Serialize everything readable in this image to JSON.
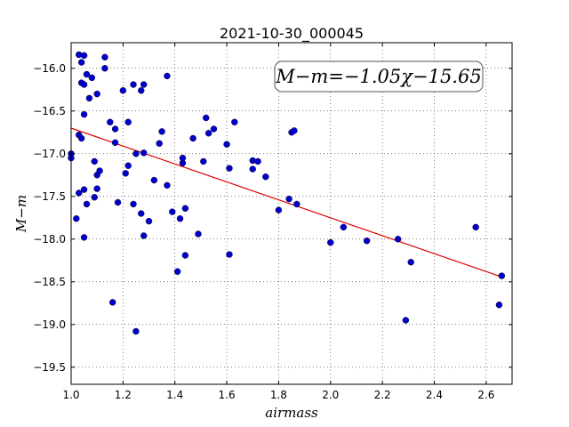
{
  "chart_data": {
    "type": "scatter",
    "title": "2021-10-30_000045",
    "xlabel": "airmass",
    "ylabel": "M−m",
    "xlim": [
      1.0,
      2.7
    ],
    "ylim": [
      -15.7,
      -19.7
    ],
    "x_ticks": [
      1.0,
      1.2,
      1.4,
      1.6,
      1.8,
      2.0,
      2.2,
      2.4,
      2.6
    ],
    "x_tick_labels": [
      "1.0",
      "1.2",
      "1.4",
      "1.6",
      "1.8",
      "2.0",
      "2.2",
      "2.4",
      "2.6"
    ],
    "y_ticks": [
      -16.0,
      -16.5,
      -17.0,
      -17.5,
      -18.0,
      -18.5,
      -19.0,
      -19.5
    ],
    "y_tick_labels": [
      "−16.0",
      "−16.5",
      "−17.0",
      "−17.5",
      "−18.0",
      "−18.5",
      "−19.0",
      "−19.5"
    ],
    "grid": true,
    "annotation": "M−m=−1.05χ−15.65",
    "marker_color": "#0000cc",
    "fit_color": "#dd0000",
    "fit_line": {
      "slope": -1.05,
      "intercept": -15.65,
      "x_range": [
        1.0,
        2.66
      ]
    },
    "points": [
      [
        1.0,
        -17.0
      ],
      [
        1.0,
        -17.05
      ],
      [
        1.02,
        -17.76
      ],
      [
        1.03,
        -15.84
      ],
      [
        1.03,
        -17.46
      ],
      [
        1.03,
        -16.78
      ],
      [
        1.04,
        -16.82
      ],
      [
        1.04,
        -15.93
      ],
      [
        1.05,
        -15.85
      ],
      [
        1.04,
        -16.17
      ],
      [
        1.05,
        -16.19
      ],
      [
        1.05,
        -17.42
      ],
      [
        1.05,
        -16.54
      ],
      [
        1.05,
        -17.98
      ],
      [
        1.06,
        -16.07
      ],
      [
        1.06,
        -17.59
      ],
      [
        1.07,
        -16.35
      ],
      [
        1.08,
        -16.11
      ],
      [
        1.09,
        -17.09
      ],
      [
        1.09,
        -17.51
      ],
      [
        1.1,
        -17.41
      ],
      [
        1.1,
        -16.3
      ],
      [
        1.1,
        -17.25
      ],
      [
        1.11,
        -17.2
      ],
      [
        1.13,
        -15.87
      ],
      [
        1.13,
        -16.0
      ],
      [
        1.15,
        -16.63
      ],
      [
        1.16,
        -18.74
      ],
      [
        1.17,
        -16.71
      ],
      [
        1.17,
        -16.87
      ],
      [
        1.18,
        -17.57
      ],
      [
        1.2,
        -16.26
      ],
      [
        1.21,
        -17.23
      ],
      [
        1.22,
        -17.14
      ],
      [
        1.22,
        -16.63
      ],
      [
        1.24,
        -16.19
      ],
      [
        1.24,
        -17.59
      ],
      [
        1.25,
        -17.0
      ],
      [
        1.25,
        -19.08
      ],
      [
        1.27,
        -16.26
      ],
      [
        1.27,
        -17.7
      ],
      [
        1.28,
        -16.99
      ],
      [
        1.28,
        -17.96
      ],
      [
        1.28,
        -16.19
      ],
      [
        1.3,
        -17.79
      ],
      [
        1.32,
        -17.31
      ],
      [
        1.34,
        -16.88
      ],
      [
        1.35,
        -16.74
      ],
      [
        1.37,
        -16.09
      ],
      [
        1.37,
        -17.37
      ],
      [
        1.39,
        -17.68
      ],
      [
        1.41,
        -18.38
      ],
      [
        1.42,
        -17.76
      ],
      [
        1.43,
        -17.11
      ],
      [
        1.43,
        -17.05
      ],
      [
        1.44,
        -17.64
      ],
      [
        1.44,
        -18.19
      ],
      [
        1.47,
        -16.82
      ],
      [
        1.49,
        -17.94
      ],
      [
        1.51,
        -17.09
      ],
      [
        1.52,
        -16.58
      ],
      [
        1.53,
        -16.76
      ],
      [
        1.55,
        -16.71
      ],
      [
        1.6,
        -16.89
      ],
      [
        1.61,
        -17.17
      ],
      [
        1.61,
        -18.18
      ],
      [
        1.63,
        -16.63
      ],
      [
        1.7,
        -17.18
      ],
      [
        1.7,
        -17.08
      ],
      [
        1.72,
        -17.09
      ],
      [
        1.75,
        -17.27
      ],
      [
        1.8,
        -17.66
      ],
      [
        1.84,
        -17.53
      ],
      [
        1.85,
        -16.75
      ],
      [
        1.86,
        -16.73
      ],
      [
        1.87,
        -17.59
      ],
      [
        2.0,
        -18.04
      ],
      [
        2.05,
        -17.86
      ],
      [
        2.14,
        -18.02
      ],
      [
        2.26,
        -18.0
      ],
      [
        2.29,
        -18.95
      ],
      [
        2.31,
        -18.27
      ],
      [
        2.56,
        -17.86
      ],
      [
        2.65,
        -18.77
      ],
      [
        2.66,
        -18.43
      ]
    ]
  }
}
